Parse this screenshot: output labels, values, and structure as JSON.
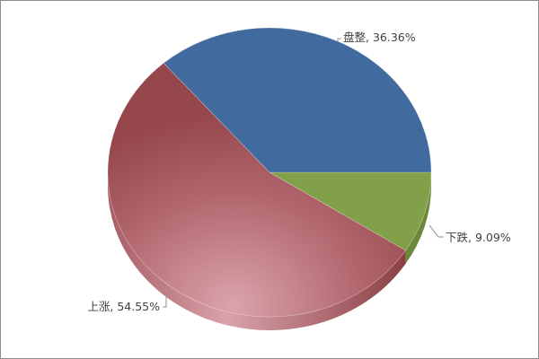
{
  "chart_data": {
    "type": "pie",
    "style": "3d",
    "slices": [
      {
        "label": "盘整",
        "value": 36.36,
        "display": "盘整, 36.36%",
        "color": "#416a9f"
      },
      {
        "label": "下跌",
        "value": 9.09,
        "display": "下跌, 9.09%",
        "color": "#82a04a"
      },
      {
        "label": "上涨",
        "value": 54.55,
        "display": "上涨, 54.55%",
        "color": "#95474c"
      }
    ],
    "legend": "none",
    "data_labels": "outside"
  }
}
